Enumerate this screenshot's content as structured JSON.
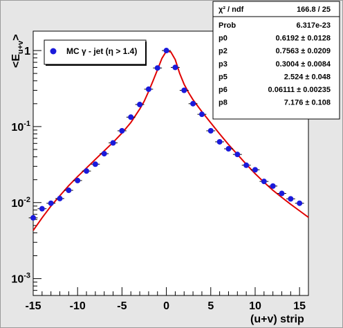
{
  "chart_data": {
    "type": "scatter",
    "xlabel": "(u+v) strip",
    "ylabel": "<E_u+v>",
    "ylabel_main": "<E",
    "ylabel_sub": "u+v",
    "ylabel_close": ">",
    "xlim": [
      -15,
      16
    ],
    "ylim": [
      0.0006,
      1.8
    ],
    "yscale": "log",
    "x_ticks": [
      -15,
      -10,
      -5,
      0,
      5,
      10,
      15
    ],
    "x_tick_labels": [
      "-15",
      "-10",
      "-5",
      "0",
      "5",
      "10",
      "15"
    ],
    "y_major": [
      0.001,
      0.01,
      0.1,
      1
    ],
    "y_tick_labels": [
      {
        "base": "10",
        "exp": "-3"
      },
      {
        "base": "10",
        "exp": "-2"
      },
      {
        "base": "10",
        "exp": "-1"
      },
      {
        "base": "1",
        "exp": ""
      }
    ],
    "grid": false,
    "legend_position": "top-left",
    "series": [
      {
        "name": "MC γ - jet (η > 1.4)",
        "marker_color": "#1a1adb",
        "x": [
          -15,
          -14,
          -13,
          -12,
          -11,
          -10,
          -9,
          -8,
          -7,
          -6,
          -5,
          -4,
          -3,
          -2,
          -1,
          0,
          1,
          2,
          3,
          4,
          5,
          6,
          7,
          8,
          9,
          10,
          11,
          12,
          13,
          14,
          15
        ],
        "y": [
          0.0063,
          0.0083,
          0.0098,
          0.0113,
          0.0145,
          0.0195,
          0.026,
          0.032,
          0.044,
          0.061,
          0.088,
          0.133,
          0.195,
          0.31,
          0.59,
          1.0,
          0.6,
          0.3,
          0.2,
          0.145,
          0.088,
          0.063,
          0.051,
          0.043,
          0.031,
          0.027,
          0.019,
          0.0165,
          0.0132,
          0.0112,
          0.0098
        ]
      }
    ],
    "fit_curve": {
      "color": "#e00000",
      "x": [
        -15,
        -14,
        -13,
        -12,
        -11,
        -10,
        -9,
        -8,
        -7,
        -6,
        -5,
        -4,
        -3,
        -2.5,
        -2,
        -1.5,
        -1,
        -0.5,
        0,
        0.5,
        1,
        1.5,
        2,
        2.5,
        3,
        4,
        5,
        6,
        7,
        8,
        9,
        10,
        11,
        12,
        13,
        14,
        15,
        16
      ],
      "y": [
        0.0043,
        0.0063,
        0.009,
        0.0123,
        0.0167,
        0.022,
        0.0285,
        0.037,
        0.048,
        0.062,
        0.082,
        0.113,
        0.17,
        0.215,
        0.29,
        0.4,
        0.56,
        0.79,
        0.98,
        0.96,
        0.76,
        0.5,
        0.36,
        0.28,
        0.225,
        0.157,
        0.112,
        0.08,
        0.058,
        0.043,
        0.032,
        0.024,
        0.0185,
        0.0145,
        0.0117,
        0.0095,
        0.0078,
        0.0064
      ]
    },
    "stats_box": [
      {
        "name": "χ² / ndf",
        "value": "166.8 / 25"
      },
      {
        "name": "Prob",
        "value": "6.317e-23"
      },
      {
        "name": "p0",
        "value": "0.6192 ± 0.0128"
      },
      {
        "name": "p2",
        "value": "0.7563 ± 0.0209"
      },
      {
        "name": "p3",
        "value": "0.3004 ± 0.0084"
      },
      {
        "name": "p5",
        "value": "2.524 ± 0.048"
      },
      {
        "name": "p6",
        "value": "0.06111 ± 0.00235"
      },
      {
        "name": "p8",
        "value": "7.176 ± 0.108"
      }
    ]
  }
}
